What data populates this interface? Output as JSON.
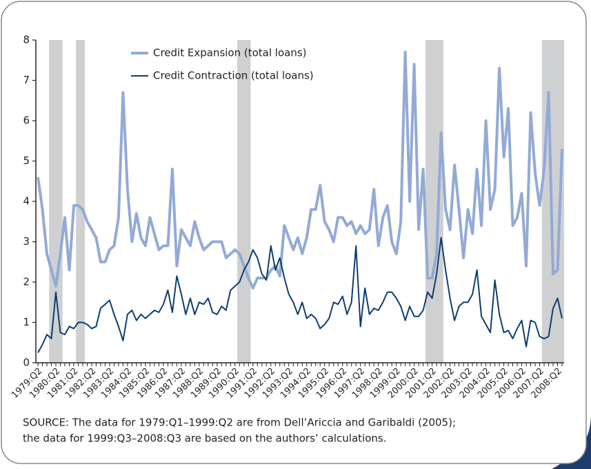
{
  "chart_data": {
    "type": "line",
    "categories": [
      "1979:Q2",
      null,
      null,
      null,
      "1980:Q2",
      null,
      null,
      null,
      "1981:Q2",
      null,
      null,
      null,
      "1982:Q2",
      null,
      null,
      null,
      "1983:Q2",
      null,
      null,
      null,
      "1984:Q2",
      null,
      null,
      null,
      "1985:Q2",
      null,
      null,
      null,
      "1986:Q2",
      null,
      null,
      null,
      "1987:Q2",
      null,
      null,
      null,
      "1988:Q2",
      null,
      null,
      null,
      "1989:Q2",
      null,
      null,
      null,
      "1990:Q2",
      null,
      null,
      null,
      "1991:Q2",
      null,
      null,
      null,
      "1992:Q2",
      null,
      null,
      null,
      "1993:Q2",
      null,
      null,
      null,
      "1994:Q2",
      null,
      null,
      null,
      "1995:Q2",
      null,
      null,
      null,
      "1996:Q2",
      null,
      null,
      null,
      "1997:Q2",
      null,
      null,
      null,
      "1998:Q2",
      null,
      null,
      null,
      "1999:Q2",
      null,
      null,
      null,
      "2000:Q2",
      null,
      null,
      null,
      "2001:Q2",
      null,
      null,
      null,
      "2002:Q2",
      null,
      null,
      null,
      "2003:Q2",
      null,
      null,
      null,
      "2004:Q2",
      null,
      null,
      null,
      "2005:Q2",
      null,
      null,
      null,
      "2006:Q2",
      null,
      null,
      null,
      "2007:Q2",
      null,
      null,
      null,
      "2008:Q2",
      null
    ],
    "series": [
      {
        "name": "Credit Expansion (total loans)",
        "color": "#93aad6",
        "width": 4,
        "values": [
          4.6,
          3.8,
          2.7,
          2.3,
          1.9,
          2.7,
          3.6,
          2.3,
          3.9,
          3.9,
          3.8,
          3.5,
          3.3,
          3.1,
          2.5,
          2.5,
          2.8,
          2.9,
          3.6,
          6.7,
          4.3,
          3.0,
          3.7,
          3.1,
          2.9,
          3.6,
          3.2,
          2.8,
          2.9,
          2.9,
          4.8,
          2.4,
          3.3,
          3.1,
          2.9,
          3.5,
          3.1,
          2.8,
          2.9,
          3.0,
          3.0,
          3.0,
          2.6,
          2.7,
          2.8,
          2.7,
          2.4,
          2.1,
          1.85,
          2.1,
          2.1,
          2.1,
          2.3,
          2.4,
          2.15,
          3.4,
          3.1,
          2.8,
          3.1,
          2.7,
          3.1,
          3.8,
          3.8,
          4.4,
          3.5,
          3.3,
          3.0,
          3.6,
          3.6,
          3.4,
          3.5,
          3.2,
          3.4,
          3.2,
          3.3,
          4.3,
          2.9,
          3.6,
          3.9,
          3.0,
          2.7,
          3.5,
          7.7,
          4.0,
          7.4,
          3.3,
          4.8,
          2.1,
          2.1,
          2.7,
          5.7,
          3.8,
          3.3,
          4.9,
          3.8,
          2.6,
          3.8,
          3.2,
          4.8,
          3.4,
          6.0,
          3.8,
          4.3,
          7.3,
          5.1,
          6.3,
          3.4,
          3.6,
          4.2,
          2.4,
          6.2,
          4.7,
          3.9,
          4.8,
          6.7,
          2.2,
          2.3,
          5.3
        ]
      },
      {
        "name": "Credit Contraction (total loans)",
        "color": "#0d3d6e",
        "width": 2,
        "values": [
          0.25,
          0.45,
          0.7,
          0.6,
          1.75,
          0.75,
          0.7,
          0.9,
          0.85,
          1.0,
          1.0,
          0.95,
          0.85,
          0.9,
          1.35,
          1.45,
          1.55,
          1.2,
          0.9,
          0.55,
          1.2,
          1.3,
          1.05,
          1.2,
          1.1,
          1.2,
          1.3,
          1.25,
          1.45,
          1.8,
          1.25,
          2.15,
          1.7,
          1.2,
          1.6,
          1.2,
          1.5,
          1.45,
          1.6,
          1.25,
          1.2,
          1.4,
          1.3,
          1.8,
          1.9,
          2.0,
          2.3,
          2.5,
          2.8,
          2.6,
          2.2,
          2.05,
          2.9,
          2.3,
          2.6,
          2.1,
          1.7,
          1.5,
          1.2,
          1.5,
          1.1,
          1.2,
          1.1,
          0.85,
          0.95,
          1.1,
          1.5,
          1.45,
          1.65,
          1.2,
          1.5,
          2.9,
          0.9,
          1.85,
          1.2,
          1.35,
          1.3,
          1.5,
          1.75,
          1.75,
          1.6,
          1.4,
          1.05,
          1.4,
          1.15,
          1.15,
          1.3,
          1.75,
          1.6,
          2.2,
          3.1,
          2.3,
          1.6,
          1.05,
          1.4,
          1.5,
          1.5,
          1.7,
          2.3,
          1.15,
          0.95,
          0.75,
          2.05,
          1.2,
          0.75,
          0.8,
          0.6,
          0.85,
          1.05,
          0.4,
          1.05,
          1.0,
          0.65,
          0.6,
          0.65,
          1.35,
          1.6,
          1.1
        ]
      }
    ],
    "shaded": [
      [
        3,
        5
      ],
      [
        9,
        10
      ],
      [
        45,
        47
      ],
      [
        87,
        90
      ],
      [
        113,
        117
      ]
    ],
    "shade_color": "#cfd0d2",
    "ylim": [
      0,
      8
    ],
    "yticks": [
      0,
      1,
      2,
      3,
      4,
      5,
      6,
      7,
      8
    ],
    "legend": "upper-left",
    "notes": [
      "SOURCE: The data for 1979:Q1–1999:Q2 are from Dell’Ariccia and Garibaldi (2005);",
      "the data for 1999:Q3–2008:Q3 are based on the authors’ calculations."
    ]
  }
}
